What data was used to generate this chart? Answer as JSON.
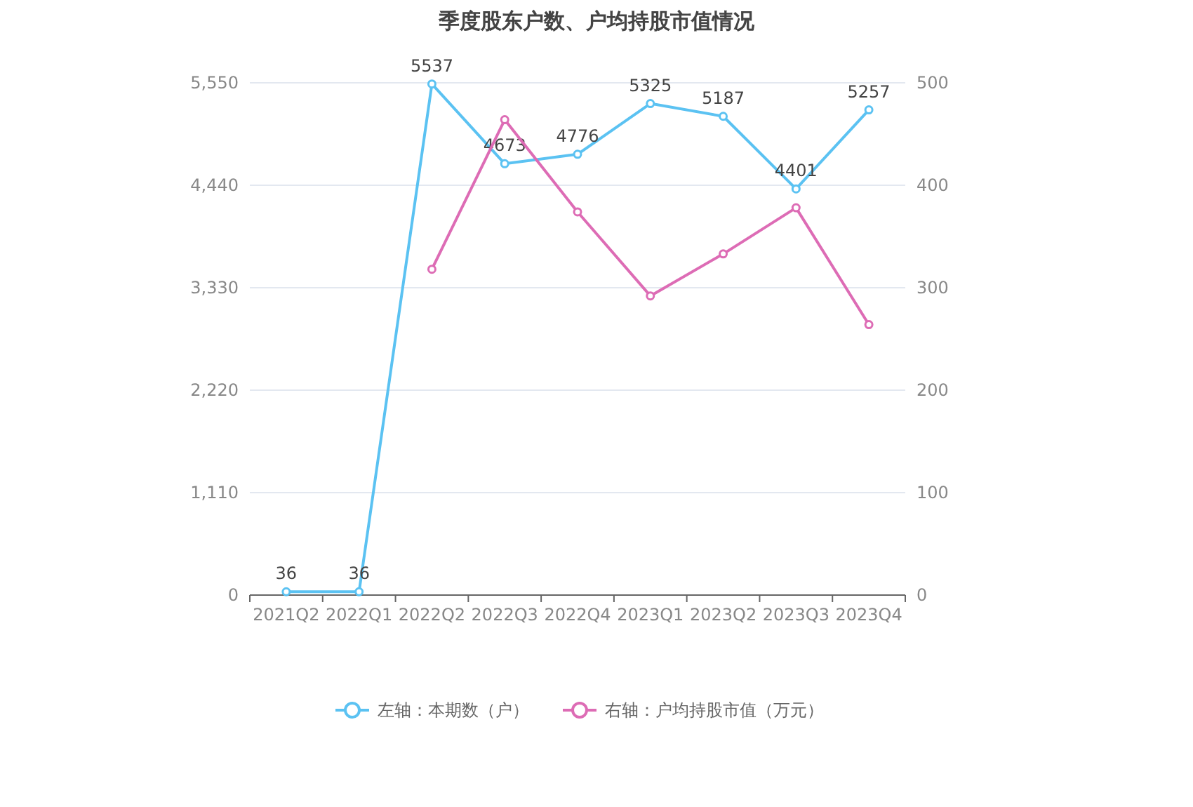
{
  "chart_data": {
    "type": "line",
    "title": "季度股东户数、户均持股市值情况",
    "categories": [
      "2021Q2",
      "2022Q1",
      "2022Q2",
      "2022Q3",
      "2022Q4",
      "2023Q1",
      "2023Q2",
      "2023Q3",
      "2023Q4"
    ],
    "series": [
      {
        "name": "左轴：本期数（户）",
        "color": "#5bc2f2",
        "values": [
          36,
          36,
          5537,
          4673,
          4776,
          5325,
          5187,
          4401,
          5257
        ],
        "value_labels": [
          "36",
          "36",
          "5537",
          "4673",
          "4776",
          "5325",
          "5187",
          "4401",
          "5257"
        ]
      },
      {
        "name": "右轴：户均持股市值（万元）",
        "color": "#dd6cb5",
        "axis": "y2",
        "values": [
          null,
          null,
          318,
          464,
          374,
          292,
          333,
          378,
          264
        ]
      }
    ],
    "ylim": [
      0,
      5550
    ],
    "yticks": [
      0,
      {
        "value": 1110,
        "label": "1,110"
      },
      {
        "value": 2220,
        "label": "2,220"
      },
      {
        "value": 3330,
        "label": "3,330"
      },
      {
        "value": 4440,
        "label": "4,440"
      },
      {
        "value": 5550,
        "label": "5,550"
      }
    ],
    "y2lim": [
      0,
      500
    ],
    "y2ticks": [
      0,
      100,
      200,
      300,
      400,
      500
    ],
    "grid": "y",
    "legend": "bottom",
    "marker": "circle",
    "line_style": "solid"
  }
}
